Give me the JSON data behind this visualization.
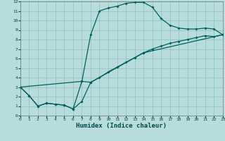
{
  "xlabel": "Humidex (Indice chaleur)",
  "bg_color": "#b8dcdc",
  "grid_color": "#90bcbc",
  "line_color": "#006060",
  "tick_color": "#004848",
  "xlim": [
    0,
    23
  ],
  "ylim": [
    0,
    12
  ],
  "line1_x": [
    0,
    1,
    2,
    3,
    4,
    5,
    6,
    7,
    8,
    9,
    10,
    11,
    12,
    13,
    14,
    15,
    16,
    17,
    18,
    19,
    20,
    21,
    22,
    23
  ],
  "line1_y": [
    3.0,
    2.1,
    1.0,
    1.3,
    1.2,
    1.1,
    0.7,
    3.6,
    8.5,
    11.0,
    11.3,
    11.5,
    11.8,
    11.9,
    11.9,
    11.4,
    10.2,
    9.5,
    9.2,
    9.1,
    9.1,
    9.2,
    9.1,
    8.5
  ],
  "line2_x": [
    0,
    1,
    2,
    3,
    4,
    5,
    6,
    7,
    8,
    9,
    10,
    11,
    12,
    13,
    14,
    15,
    16,
    17,
    18,
    19,
    20,
    21,
    22,
    23
  ],
  "line2_y": [
    3.0,
    2.1,
    1.0,
    1.3,
    1.2,
    1.1,
    0.7,
    1.5,
    3.5,
    4.0,
    4.6,
    5.1,
    5.6,
    6.1,
    6.6,
    7.0,
    7.3,
    7.6,
    7.8,
    8.0,
    8.2,
    8.4,
    8.3,
    8.5
  ],
  "line3_x": [
    0,
    7,
    8,
    14,
    23
  ],
  "line3_y": [
    3.0,
    3.6,
    3.5,
    6.6,
    8.5
  ]
}
